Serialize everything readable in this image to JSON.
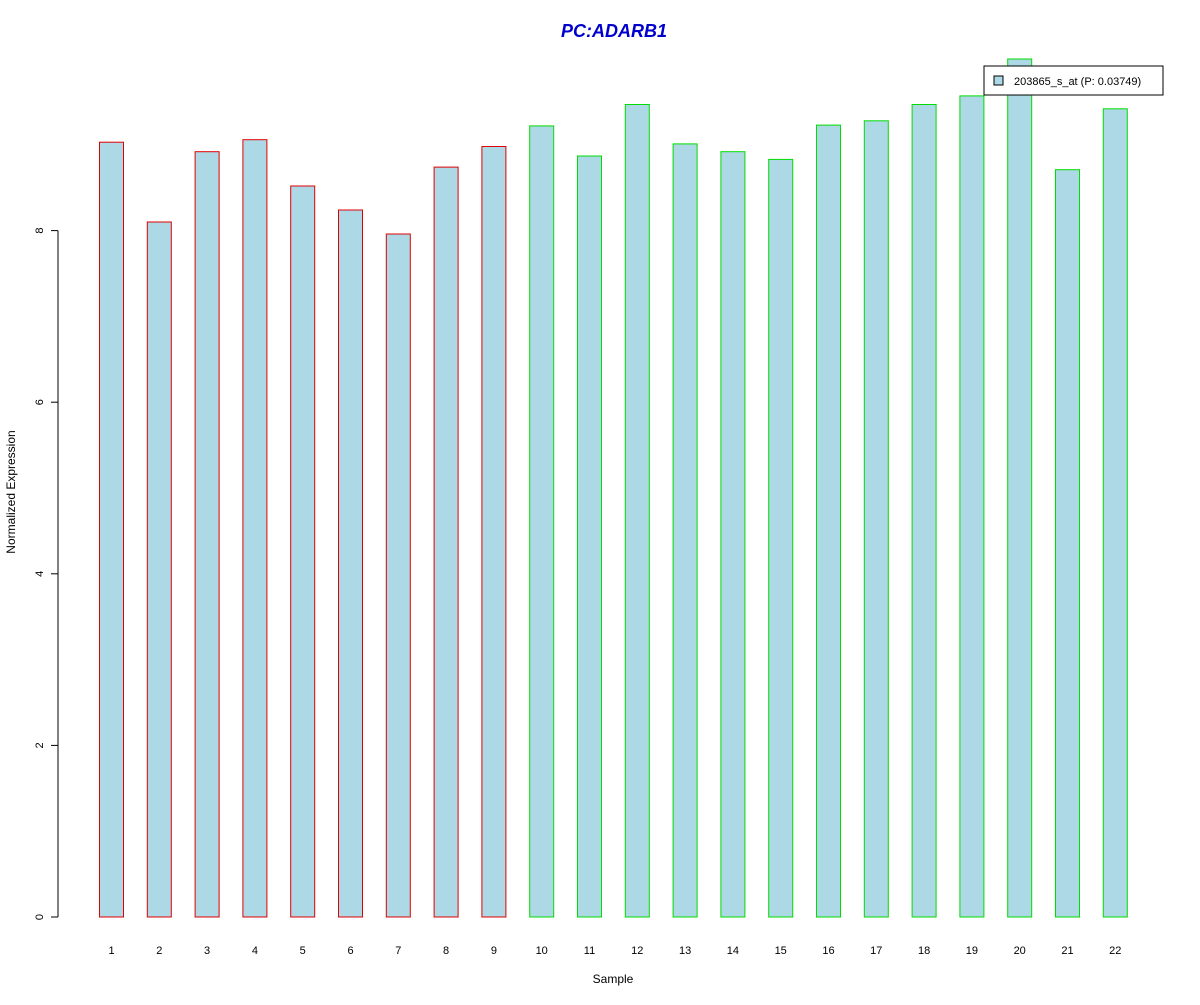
{
  "chart_data": {
    "type": "bar",
    "title": "PC:ADARB1",
    "xlabel": "Sample",
    "ylabel": "Normalized Expression",
    "categories": [
      "1",
      "2",
      "3",
      "4",
      "5",
      "6",
      "7",
      "8",
      "9",
      "10",
      "11",
      "12",
      "13",
      "14",
      "15",
      "16",
      "17",
      "18",
      "19",
      "20",
      "21",
      "22"
    ],
    "series": [
      {
        "name": "203865_s_at (P: 0.03749)",
        "values": [
          9.03,
          8.1,
          8.92,
          9.06,
          8.52,
          8.24,
          7.96,
          8.74,
          8.98,
          9.22,
          8.87,
          9.47,
          9.01,
          8.92,
          8.83,
          9.23,
          9.28,
          9.47,
          9.57,
          10.0,
          8.71,
          9.42
        ]
      }
    ],
    "ylim": [
      0,
      10
    ],
    "yticks": [
      0,
      2,
      4,
      6,
      8
    ],
    "grid": false,
    "legend_position": "top-right",
    "colors": {
      "title": "#0000cc",
      "bar_fill": "#add8e6",
      "group1_border": "#e00000",
      "group2_border": "#00dd00",
      "axis": "#000000"
    },
    "group_borders": [
      "group1",
      "group1",
      "group1",
      "group1",
      "group1",
      "group1",
      "group1",
      "group1",
      "group1",
      "group2",
      "group2",
      "group2",
      "group2",
      "group2",
      "group2",
      "group2",
      "group2",
      "group2",
      "group2",
      "group2",
      "group2",
      "group2"
    ]
  }
}
